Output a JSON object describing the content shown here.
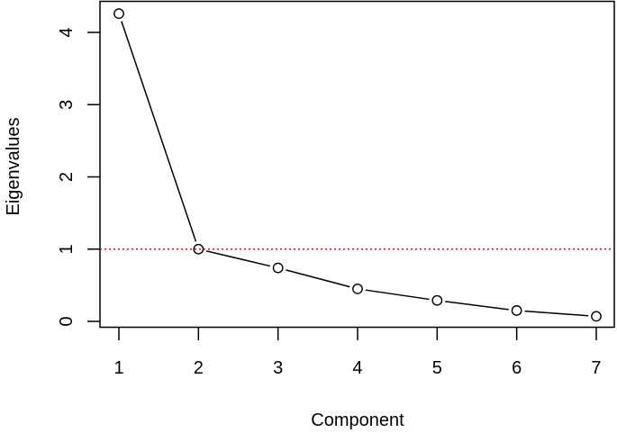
{
  "chart_data": {
    "type": "line",
    "title": "",
    "xlabel": "Component",
    "ylabel": "Eigenvalues",
    "x": [
      1,
      2,
      3,
      4,
      5,
      6,
      7
    ],
    "values": [
      4.26,
      1.0,
      0.74,
      0.45,
      0.29,
      0.15,
      0.07
    ],
    "series": [
      {
        "name": "Eigenvalues",
        "x": [
          1,
          2,
          3,
          4,
          5,
          6,
          7
        ],
        "values": [
          4.26,
          1.0,
          0.74,
          0.45,
          0.29,
          0.15,
          0.07
        ],
        "marker": "open-circle",
        "line": "solid-with-gaps"
      }
    ],
    "xticks": [
      "1",
      "2",
      "3",
      "4",
      "5",
      "6",
      "7"
    ],
    "yticks": [
      "0",
      "1",
      "2",
      "3",
      "4"
    ],
    "xlim": [
      0.76,
      7.23
    ],
    "ylim": [
      -0.07,
      4.43
    ],
    "grid": false,
    "legend": null,
    "annotations": [
      {
        "type": "hline",
        "y": 1,
        "color": "#ff0000",
        "style": "dotted"
      }
    ]
  },
  "colors": {
    "line": "#000000",
    "reference_line": "#ff0000",
    "background": "#ffffff"
  }
}
